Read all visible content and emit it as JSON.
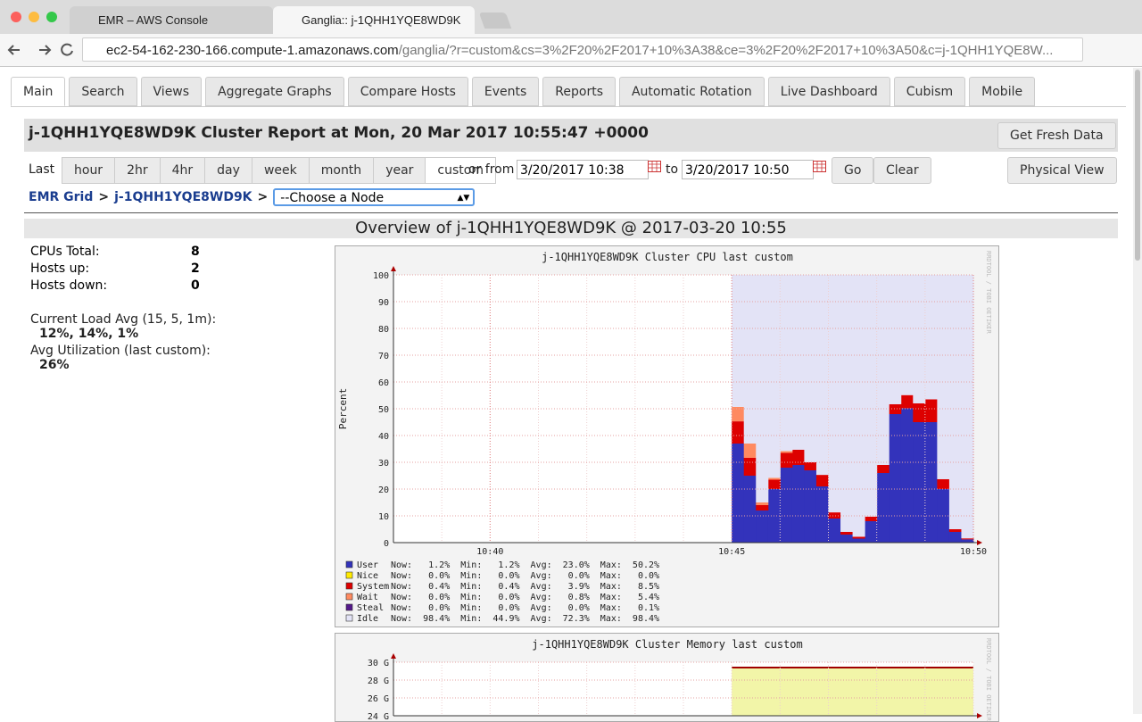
{
  "browser": {
    "tabs": [
      "EMR – AWS Console",
      "Ganglia:: j-1QHH1YQE8WD9K"
    ],
    "url_host": "ec2-54-162-230-166.compute-1.amazonaws.com",
    "url_path": "/ganglia/?r=custom&cs=3%2F20%2F2017+10%3A38&ce=3%2F20%2F2017+10%3A50&c=j-1QHH1YQE8W..."
  },
  "nav": {
    "tabs": [
      "Main",
      "Search",
      "Views",
      "Aggregate Graphs",
      "Compare Hosts",
      "Events",
      "Reports",
      "Automatic Rotation",
      "Live Dashboard",
      "Cubism",
      "Mobile"
    ]
  },
  "header": {
    "title": "j-1QHH1YQE8WD9K Cluster Report at Mon, 20 Mar 2017 10:55:47 +0000",
    "refresh_button": "Get Fresh Data"
  },
  "range": {
    "last_label": "Last",
    "buttons": [
      "hour",
      "2hr",
      "4hr",
      "day",
      "week",
      "month",
      "year",
      "custom"
    ],
    "from_label": "or from",
    "from": "3/20/2017 10:38",
    "to_label": "to",
    "to": "3/20/2017 10:50",
    "go": "Go",
    "clear": "Clear",
    "physical_view": "Physical View"
  },
  "breadcrumb": {
    "grid": "EMR Grid",
    "sep": ">",
    "cluster": "j-1QHH1YQE8WD9K",
    "node_select": "--Choose a Node"
  },
  "overview": {
    "title": "Overview of j-1QHH1YQE8WD9K @ 2017-03-20 10:55",
    "stats": [
      {
        "label": "CPUs Total:",
        "value": 8
      },
      {
        "label": "Hosts up:",
        "value": 2
      },
      {
        "label": "Hosts down:",
        "value": 0
      }
    ],
    "load_label": "Current Load Avg (15, 5, 1m):",
    "load": "12%, 14%, 1%",
    "util_label": "Avg Utilization (last custom):",
    "util": "26%"
  },
  "chart_data": [
    {
      "type": "bar",
      "stacked": true,
      "title": "j-1QHH1YQE8WD9K Cluster CPU last custom",
      "ylabel": "Percent",
      "credit": "RRDTOOL / TOBI OETIKER",
      "categories": [
        null,
        null,
        null,
        null,
        null,
        null,
        null,
        null,
        "10:40",
        null,
        null,
        null,
        null,
        null,
        null,
        null,
        null,
        null,
        null,
        null,
        null,
        null,
        null,
        null,
        null,
        null,
        null,
        null,
        "10:45",
        null,
        null,
        null,
        null,
        null,
        null,
        null,
        null,
        null,
        null,
        null,
        null,
        null,
        null,
        null,
        null,
        null,
        null,
        null,
        "10:50"
      ],
      "ylim": [
        0,
        100
      ],
      "yticks": [
        0,
        10,
        20,
        30,
        40,
        50,
        60,
        70,
        80,
        90,
        100
      ],
      "grid": true,
      "series": [
        {
          "name": "User",
          "color": "#3333bb",
          "stats": "Now:   1.2%  Min:   1.2%  Avg:  23.0%  Max:  50.2%",
          "values": [
            null,
            null,
            null,
            null,
            null,
            null,
            null,
            null,
            null,
            null,
            null,
            null,
            null,
            null,
            null,
            null,
            null,
            null,
            null,
            null,
            null,
            null,
            null,
            null,
            null,
            null,
            null,
            null,
            37,
            25,
            12,
            20,
            28,
            29,
            27,
            21,
            9,
            3,
            1.5,
            8,
            26,
            48,
            50.2,
            45,
            45,
            20,
            4,
            1.2,
            null
          ]
        },
        {
          "name": "Nice",
          "color": "#ffea00",
          "stats": "Now:   0.0%  Min:   0.0%  Avg:   0.0%  Max:   0.0%",
          "values": [
            null,
            null,
            null,
            null,
            null,
            null,
            null,
            null,
            null,
            null,
            null,
            null,
            null,
            null,
            null,
            null,
            null,
            null,
            null,
            null,
            null,
            null,
            null,
            null,
            null,
            null,
            null,
            null,
            0,
            0,
            0,
            0,
            0,
            0,
            0,
            0,
            0,
            0,
            0,
            0,
            0,
            0,
            0,
            0,
            0,
            0,
            0,
            0,
            null
          ]
        },
        {
          "name": "System",
          "color": "#dd0000",
          "stats": "Now:   0.4%  Min:   0.4%  Avg:   3.9%  Max:   8.5%",
          "values": [
            null,
            null,
            null,
            null,
            null,
            null,
            null,
            null,
            null,
            null,
            null,
            null,
            null,
            null,
            null,
            null,
            null,
            null,
            null,
            null,
            null,
            null,
            null,
            null,
            null,
            null,
            null,
            null,
            8.3,
            6.7,
            2,
            3.5,
            5.5,
            5.7,
            3,
            4.3,
            2.3,
            1,
            0.7,
            1.7,
            3,
            3.7,
            4.9,
            7,
            8.5,
            3.7,
            1,
            0.4,
            null
          ]
        },
        {
          "name": "Wait",
          "color": "#ff8a60",
          "stats": "Now:   0.0%  Min:   0.0%  Avg:   0.8%  Max:   5.4%",
          "values": [
            null,
            null,
            null,
            null,
            null,
            null,
            null,
            null,
            null,
            null,
            null,
            null,
            null,
            null,
            null,
            null,
            null,
            null,
            null,
            null,
            null,
            null,
            null,
            null,
            null,
            null,
            null,
            null,
            5.4,
            5.3,
            1,
            0.7,
            0.7,
            0,
            0,
            0,
            0,
            0,
            0,
            0,
            0,
            0,
            0,
            0,
            0,
            0,
            0,
            0,
            null
          ]
        },
        {
          "name": "Steal",
          "color": "#551a8b",
          "stats": "Now:   0.0%  Min:   0.0%  Avg:   0.0%  Max:   0.1%",
          "values": [
            null,
            null,
            null,
            null,
            null,
            null,
            null,
            null,
            null,
            null,
            null,
            null,
            null,
            null,
            null,
            null,
            null,
            null,
            null,
            null,
            null,
            null,
            null,
            null,
            null,
            null,
            null,
            null,
            0,
            0,
            0,
            0,
            0,
            0,
            0,
            0,
            0,
            0,
            0,
            0,
            0,
            0,
            0,
            0,
            0,
            0,
            0,
            0,
            null
          ]
        },
        {
          "name": "Idle",
          "color": "#e3e3f6",
          "stats": "Now:  98.4%  Min:  44.9%  Avg:  72.3%  Max:  98.4%",
          "values": [
            null,
            null,
            null,
            null,
            null,
            null,
            null,
            null,
            null,
            null,
            null,
            null,
            null,
            null,
            null,
            null,
            null,
            null,
            null,
            null,
            null,
            null,
            null,
            null,
            null,
            null,
            null,
            null,
            49.3,
            63,
            85,
            75.8,
            65.8,
            65.3,
            70,
            74.7,
            88.7,
            96,
            97.8,
            90.3,
            71,
            48.3,
            44.9,
            48,
            46.5,
            76.3,
            95,
            98.4,
            null
          ]
        }
      ]
    },
    {
      "type": "area",
      "title": "j-1QHH1YQE8WD9K Cluster Memory last custom",
      "credit": "RRDTOOL / TOBI OETIKER",
      "ylim": [
        24,
        30
      ],
      "yticks": [
        {
          "value": 30,
          "label": "30 G"
        },
        {
          "value": 28,
          "label": "28 G"
        },
        {
          "value": 26,
          "label": "26 G"
        },
        {
          "value": 24,
          "label": "24 G"
        }
      ],
      "grid": true,
      "series": [
        {
          "color": "#f2f5a8",
          "line_color": "#a00000",
          "values": [
            null,
            null,
            null,
            null,
            null,
            null,
            null,
            null,
            null,
            null,
            null,
            null,
            null,
            null,
            null,
            null,
            null,
            null,
            null,
            null,
            null,
            null,
            null,
            null,
            null,
            null,
            null,
            null,
            29.4,
            29.4,
            29.4,
            29.4,
            29.4,
            29.4,
            29.4,
            29.4,
            29.4,
            29.4,
            29.4,
            29.4,
            29.4,
            29.4,
            29.4,
            29.4,
            29.4,
            29.4,
            29.4,
            29.4,
            29.4
          ]
        }
      ]
    }
  ]
}
